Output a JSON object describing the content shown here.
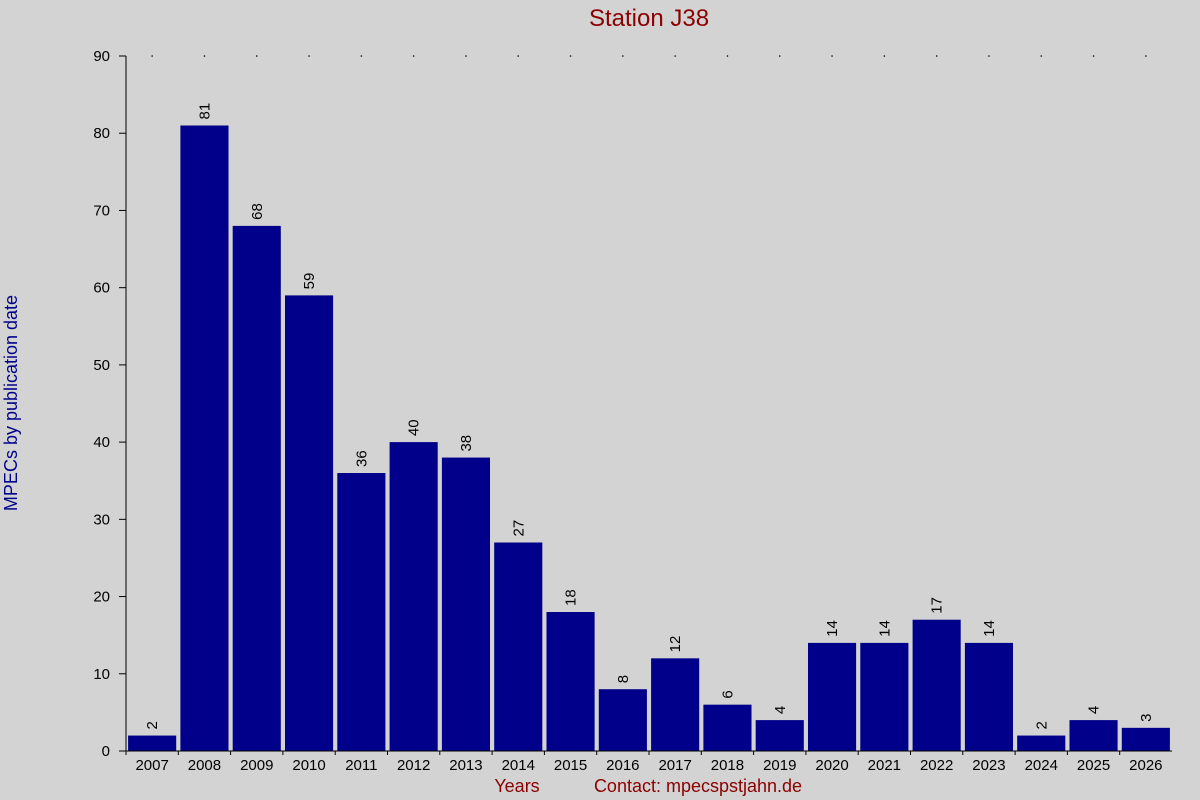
{
  "chart_data": {
    "type": "bar",
    "title": "Station J38",
    "ylabel": "MPECs by publication date",
    "xlabel": "Years",
    "contact": "Contact: mpecspstjahn.de",
    "categories": [
      "2007",
      "2008",
      "2009",
      "2010",
      "2011",
      "2012",
      "2013",
      "2014",
      "2015",
      "2016",
      "2017",
      "2018",
      "2019",
      "2020",
      "2021",
      "2022",
      "2023",
      "2024",
      "2025",
      "2026"
    ],
    "values": [
      2,
      81,
      68,
      59,
      36,
      40,
      38,
      27,
      18,
      8,
      12,
      6,
      4,
      14,
      14,
      17,
      14,
      2,
      4,
      3
    ],
    "ylim": [
      0,
      90
    ],
    "yticks": [
      0,
      10,
      20,
      30,
      40,
      50,
      60,
      70,
      80,
      90
    ],
    "colors": {
      "bar": "#00008b",
      "title": "#8b0000",
      "ylabel": "#00008b",
      "xlabel": "#8b0000",
      "background": "#d3d3d3"
    }
  }
}
